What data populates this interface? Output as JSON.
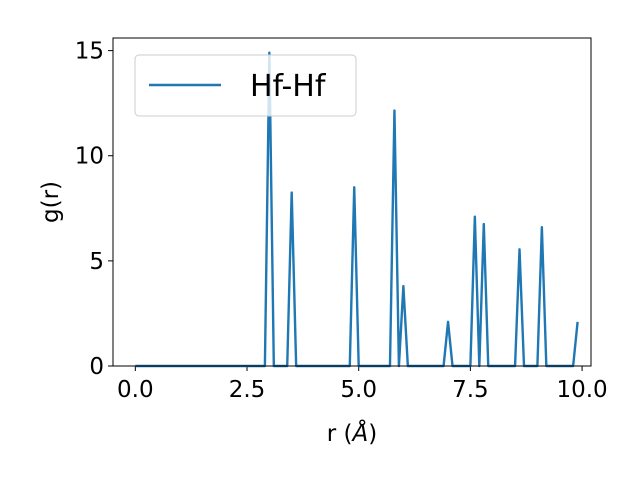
{
  "chart_data": {
    "type": "line",
    "xlabel_prefix": "r (",
    "xlabel_unit": "Å",
    "xlabel_suffix": ")",
    "ylabel": "g(r)",
    "xlim": [
      -0.5,
      10.2
    ],
    "ylim": [
      0,
      15.6
    ],
    "xticks": [
      0.0,
      2.5,
      5.0,
      7.5,
      10.0
    ],
    "xtick_labels": [
      "0.0",
      "2.5",
      "5.0",
      "7.5",
      "10.0"
    ],
    "yticks": [
      0,
      5,
      10,
      15
    ],
    "ytick_labels": [
      "0",
      "5",
      "10",
      "15"
    ],
    "grid": false,
    "legend_position": "top-left",
    "color": "#1f77b4",
    "series": [
      {
        "name": "Hf-Hf",
        "x": [
          0.0,
          2.9,
          3.0,
          3.1,
          3.4,
          3.5,
          3.6,
          4.8,
          4.9,
          5.0,
          5.7,
          5.8,
          5.9,
          6.0,
          6.1,
          6.9,
          7.0,
          7.1,
          7.5,
          7.6,
          7.7,
          7.8,
          7.9,
          8.5,
          8.6,
          8.7,
          9.0,
          9.1,
          9.2,
          9.8,
          9.9
        ],
        "y": [
          0,
          0,
          14.9,
          0,
          0,
          8.25,
          0,
          0,
          8.5,
          0,
          0,
          12.15,
          0,
          3.8,
          0,
          0,
          2.1,
          0,
          0,
          7.1,
          0,
          6.75,
          0,
          0,
          5.55,
          0,
          0,
          6.6,
          0,
          0,
          2.1
        ]
      }
    ]
  }
}
